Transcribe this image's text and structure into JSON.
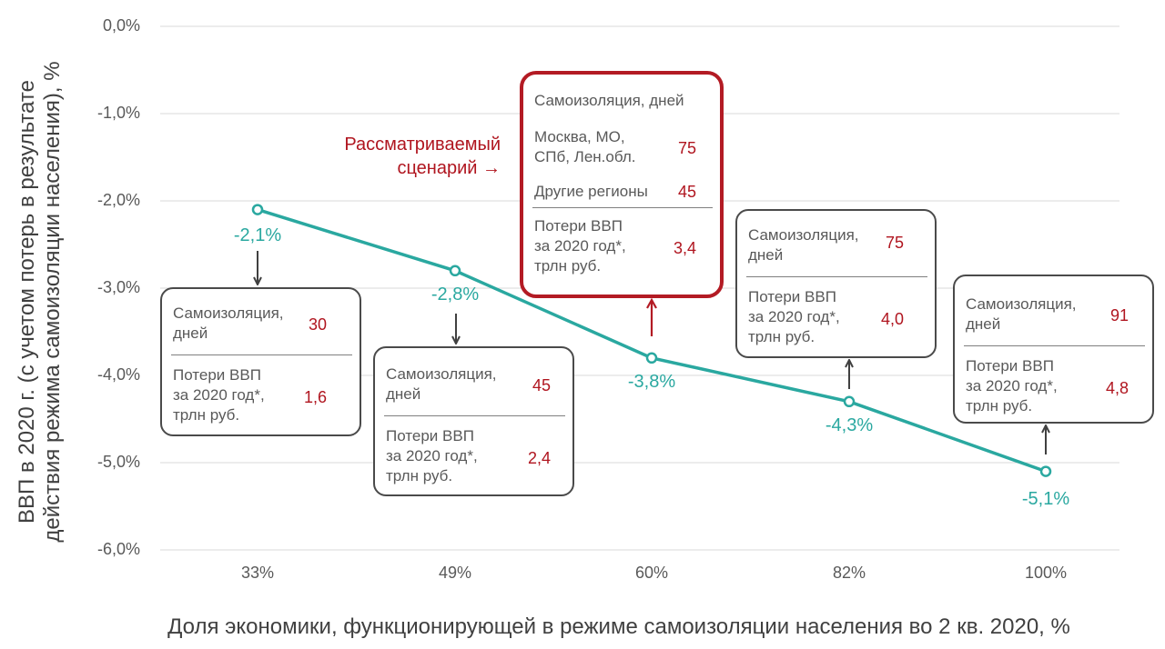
{
  "chart_data": {
    "type": "line",
    "title": "",
    "xlabel": "Доля экономики, функционирующей в режиме самоизоляции населения во 2 кв. 2020, %",
    "ylabel_line1": "ВВП в 2020 г. (с учетом потерь в результате",
    "ylabel_line2": "действия режима  самоизоляции населения), %",
    "ylim": [
      -6.0,
      0.0
    ],
    "yticks": [
      "0,0%",
      "-1,0%",
      "-2,0%",
      "-3,0%",
      "-4,0%",
      "-5,0%",
      "-6,0%"
    ],
    "categories": [
      "33%",
      "49%",
      "60%",
      "82%",
      "100%"
    ],
    "values": [
      -2.1,
      -2.8,
      -3.8,
      -4.3,
      -5.1
    ],
    "data_labels": [
      "-2,1%",
      "-2,8%",
      "-3,8%",
      "-4,3%",
      "-5,1%"
    ],
    "line_color": "#2aa8a0",
    "grid": true
  },
  "annotation": {
    "scenario_label": "Рассматриваемый\nсценарий →",
    "highlight_color": "#b31b24"
  },
  "cards": {
    "c33": {
      "days_label": "Самоизоляция,\nдней",
      "days_value": "30",
      "loss_label": "Потери ВВП\nза 2020 год*,\nтрлн руб.",
      "loss_value": "1,6"
    },
    "c49": {
      "days_label": "Самоизоляция,\nдней",
      "days_value": "45",
      "loss_label": "Потери ВВП\nза 2020 год*,\nтрлн руб.",
      "loss_value": "2,4"
    },
    "c60": {
      "header": "Самоизоляция, дней",
      "moscow_label": "Москва, МО,\nСПб, Лен.обл.",
      "moscow_value": "75",
      "other_label": "Другие регионы",
      "other_value": "45",
      "loss_label": "Потери ВВП\nза 2020 год*,\nтрлн руб.",
      "loss_value": "3,4"
    },
    "c82": {
      "days_label": "Самоизоляция,\nдней",
      "days_value": "75",
      "loss_label": "Потери ВВП\nза 2020 год*,\nтрлн руб.",
      "loss_value": "4,0"
    },
    "c100": {
      "days_label": "Самоизоляция,\nдней",
      "days_value": "91",
      "loss_label": "Потери ВВП\nза 2020 год*,\nтрлн руб.",
      "loss_value": "4,8"
    }
  }
}
